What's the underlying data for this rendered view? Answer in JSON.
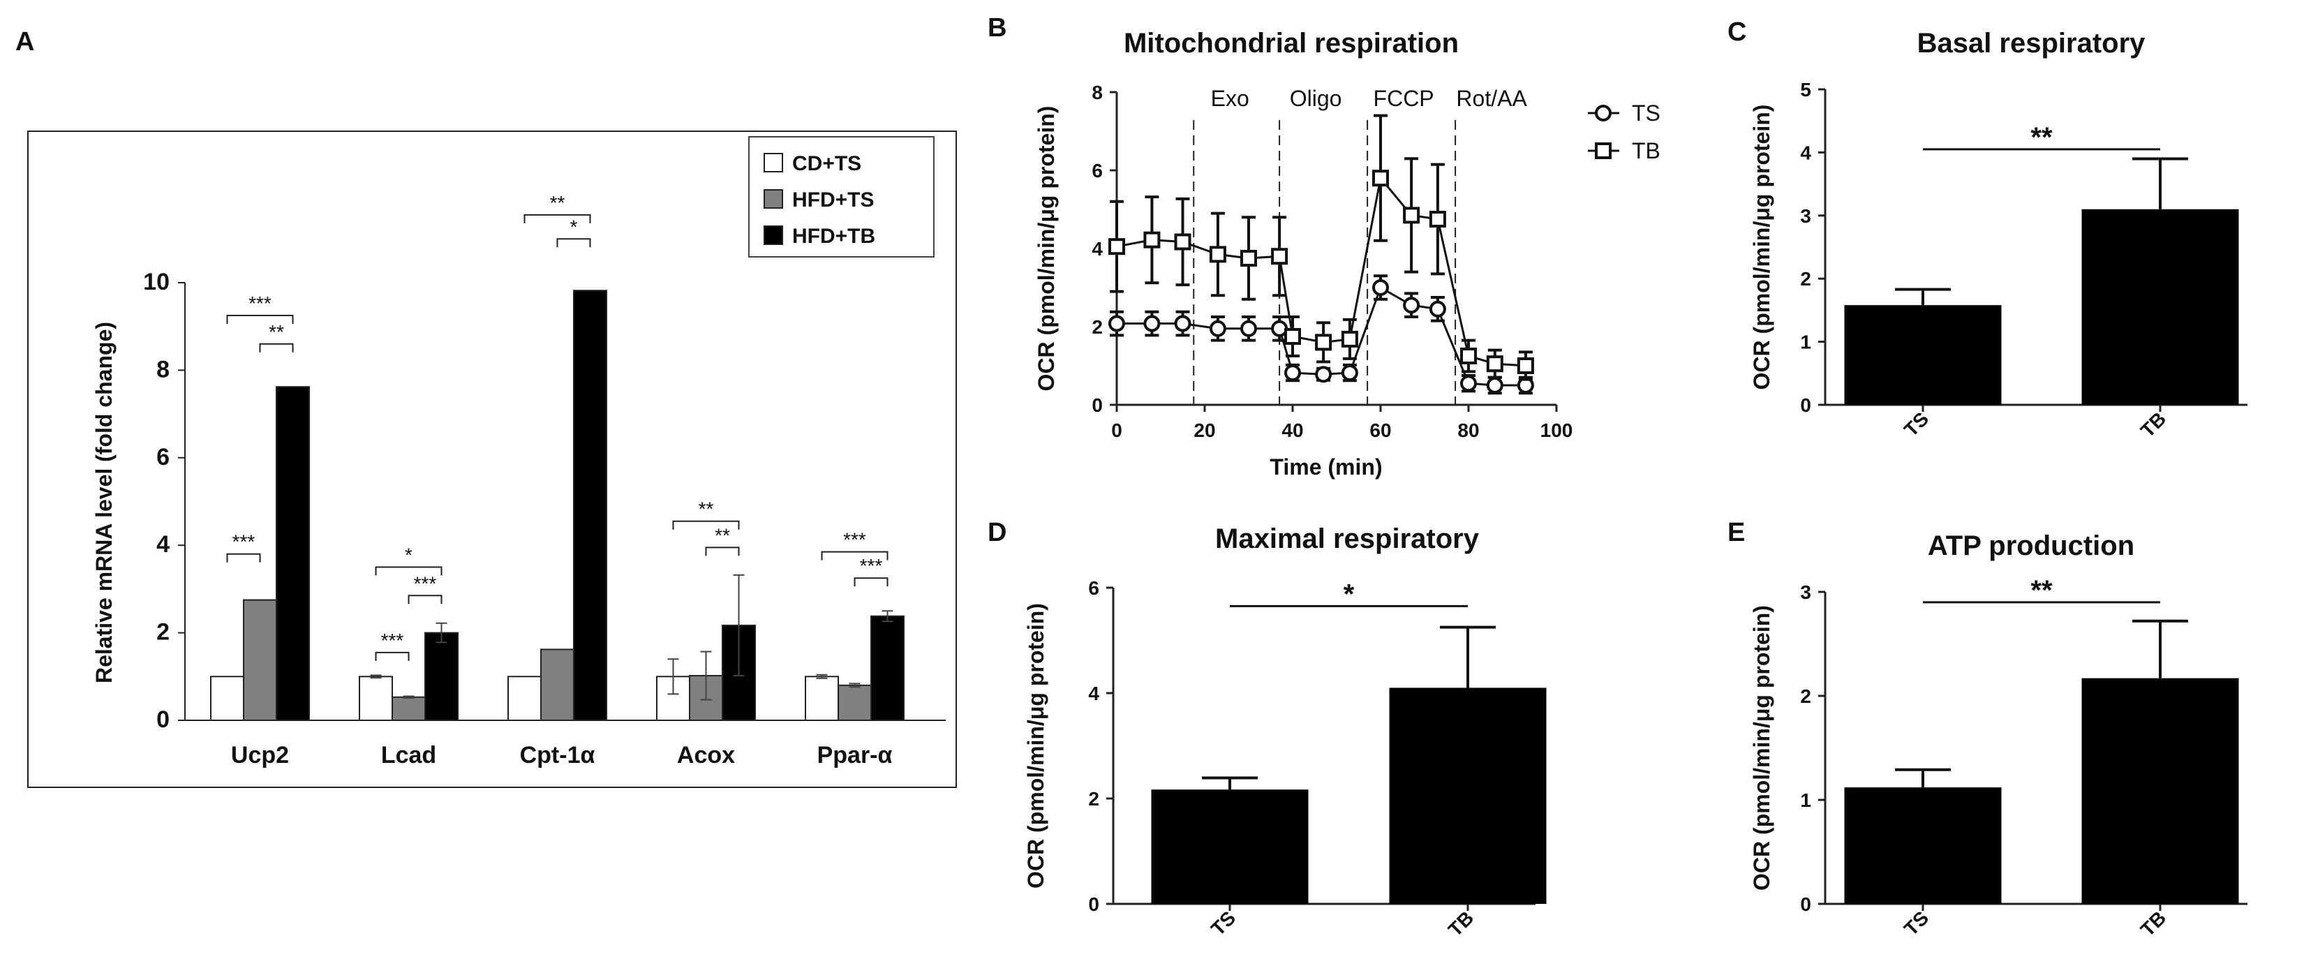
{
  "panels": {
    "A": {
      "letter": "A",
      "chart_data": {
        "type": "bar",
        "title": "",
        "ylabel": "Relative mRNA level (fold change)",
        "ylim": [
          0,
          10
        ],
        "yticks": [
          "0",
          "2",
          "4",
          "6",
          "8",
          "10"
        ],
        "categories": [
          "Ucp2",
          "Lcad",
          "Cpt-1α",
          "Acox",
          "Ppar-α"
        ],
        "series": [
          {
            "name": "CD+TS",
            "color": "#ffffff",
            "values": [
              1.0,
              1.0,
              1.0,
              1.0,
              1.0
            ],
            "errors": [
              0,
              0.03,
              0,
              0.4,
              0.04
            ]
          },
          {
            "name": "HFD+TS",
            "color": "#808080",
            "values": [
              2.75,
              0.53,
              1.62,
              1.02,
              0.8
            ],
            "errors": [
              0,
              0.02,
              0,
              0.55,
              0.04
            ]
          },
          {
            "name": "HFD+TB",
            "color": "#000000",
            "values": [
              7.62,
              2.0,
              9.82,
              2.17,
              2.38
            ],
            "errors": [
              0,
              0.22,
              0,
              1.15,
              0.12
            ]
          }
        ],
        "significance": [
          {
            "category": "Ucp2",
            "pair": [
              "CD+TS",
              "HFD+TS"
            ],
            "label": "***",
            "y": 3.8
          },
          {
            "category": "Ucp2",
            "pair": [
              "HFD+TS",
              "HFD+TB"
            ],
            "label": "**",
            "y": 8.6
          },
          {
            "category": "Ucp2",
            "pair": [
              "CD+TS",
              "HFD+TB"
            ],
            "label": "***",
            "y": 9.25
          },
          {
            "category": "Lcad",
            "pair": [
              "CD+TS",
              "HFD+TS"
            ],
            "label": "***",
            "y": 1.55
          },
          {
            "category": "Lcad",
            "pair": [
              "HFD+TS",
              "HFD+TB"
            ],
            "label": "***",
            "y": 2.85
          },
          {
            "category": "Lcad",
            "pair": [
              "CD+TS",
              "HFD+TB"
            ],
            "label": "*",
            "y": 3.5
          },
          {
            "category": "Cpt-1α",
            "pair": [
              "HFD+TS",
              "HFD+TB"
            ],
            "label": "*",
            "y": 11.0
          },
          {
            "category": "Cpt-1α",
            "pair": [
              "CD+TS",
              "HFD+TB"
            ],
            "label": "**",
            "y": 11.55
          },
          {
            "category": "Acox",
            "pair": [
              "HFD+TS",
              "HFD+TB"
            ],
            "label": "**",
            "y": 3.95
          },
          {
            "category": "Acox",
            "pair": [
              "CD+TS",
              "HFD+TB"
            ],
            "label": "**",
            "y": 4.55
          },
          {
            "category": "Ppar-α",
            "pair": [
              "HFD+TS",
              "HFD+TB"
            ],
            "label": "***",
            "y": 3.25
          },
          {
            "category": "Ppar-α",
            "pair": [
              "CD+TS",
              "HFD+TB"
            ],
            "label": "***",
            "y": 3.85
          }
        ],
        "legend": "top-right"
      }
    },
    "B": {
      "letter": "B",
      "chart_data": {
        "type": "line",
        "title": "Mitochondrial respiration",
        "xlabel": "Time (min)",
        "ylabel": "OCR (pmol/min/μg protein)",
        "xlim": [
          0,
          100
        ],
        "ylim": [
          0,
          8
        ],
        "xticks": [
          "0",
          "20",
          "40",
          "60",
          "80",
          "100"
        ],
        "yticks": [
          "0",
          "2",
          "4",
          "6",
          "8"
        ],
        "x": [
          0,
          8,
          15,
          23,
          30,
          37,
          40,
          47,
          53,
          60,
          67,
          73,
          80,
          86,
          93
        ],
        "series": [
          {
            "name": "TS",
            "marker": "circle",
            "values": [
              2.08,
              2.08,
              2.08,
              1.95,
              1.95,
              1.95,
              0.82,
              0.78,
              0.82,
              3.0,
              2.55,
              2.45,
              0.55,
              0.5,
              0.5
            ],
            "errors": [
              0.3,
              0.3,
              0.3,
              0.3,
              0.3,
              0.3,
              0.2,
              0.15,
              0.2,
              0.3,
              0.3,
              0.3,
              0.2,
              0.2,
              0.2
            ]
          },
          {
            "name": "TB",
            "marker": "square",
            "values": [
              4.05,
              4.22,
              4.17,
              3.85,
              3.75,
              3.8,
              1.75,
              1.6,
              1.68,
              5.8,
              4.85,
              4.75,
              1.25,
              1.05,
              1.0
            ],
            "errors": [
              1.15,
              1.1,
              1.1,
              1.05,
              1.05,
              1.0,
              0.5,
              0.5,
              0.5,
              1.6,
              1.45,
              1.4,
              0.4,
              0.35,
              0.35
            ]
          }
        ],
        "phases": [
          {
            "label": "Exo",
            "x": 17.5
          },
          {
            "label": "Oligo",
            "x": 37
          },
          {
            "label": "FCCP",
            "x": 57
          },
          {
            "label": "Rot/AA",
            "x": 77
          }
        ],
        "legend": "top-right"
      }
    },
    "C": {
      "letter": "C",
      "chart_data": {
        "type": "bar",
        "title": "Basal respiratory",
        "ylabel": "OCR (pmol/min/μg protein)",
        "ylim": [
          0,
          5
        ],
        "yticks": [
          "0",
          "1",
          "2",
          "3",
          "4",
          "5"
        ],
        "categories": [
          "TS",
          "TB"
        ],
        "values": [
          1.58,
          3.1
        ],
        "errors": [
          0.25,
          0.8
        ],
        "significance": {
          "label": "**",
          "y": 4.05
        }
      }
    },
    "D": {
      "letter": "D",
      "chart_data": {
        "type": "bar",
        "title": "Maximal respiratory",
        "ylabel": "OCR (pmol/min/μg protein)",
        "ylim": [
          0,
          6
        ],
        "yticks": [
          "0",
          "2",
          "4",
          "6"
        ],
        "categories": [
          "TS",
          "TB"
        ],
        "values": [
          2.17,
          4.1
        ],
        "errors": [
          0.22,
          1.15
        ],
        "significance": {
          "label": "*",
          "y": 5.65
        }
      }
    },
    "E": {
      "letter": "E",
      "chart_data": {
        "type": "bar",
        "title": "ATP production",
        "ylabel": "OCR (pmol/min/μg protein)",
        "ylim": [
          0,
          3
        ],
        "yticks": [
          "0",
          "1",
          "2",
          "3"
        ],
        "categories": [
          "TS",
          "TB"
        ],
        "values": [
          1.12,
          2.17
        ],
        "errors": [
          0.17,
          0.55
        ],
        "significance": {
          "label": "**",
          "y": 2.9
        }
      }
    }
  }
}
